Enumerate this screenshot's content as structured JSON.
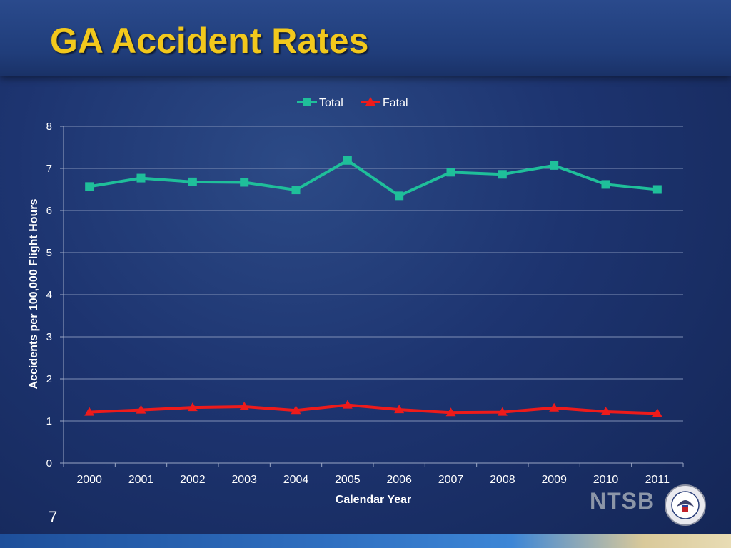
{
  "slide": {
    "title": "GA Accident Rates",
    "slide_number": "7",
    "logo_text": "NTSB",
    "colors": {
      "title": "#f2c81c",
      "background": "#1d3470"
    }
  },
  "chart_data": {
    "type": "line",
    "categories": [
      "2000",
      "2001",
      "2002",
      "2003",
      "2004",
      "2005",
      "2006",
      "2007",
      "2008",
      "2009",
      "2010",
      "2011"
    ],
    "series": [
      {
        "name": "Total",
        "color": "#1fbf9a",
        "marker": "square",
        "values": [
          6.57,
          6.77,
          6.68,
          6.67,
          6.49,
          7.19,
          6.35,
          6.91,
          6.86,
          7.07,
          6.62,
          6.5
        ]
      },
      {
        "name": "Fatal",
        "color": "#ee1b1b",
        "marker": "triangle",
        "values": [
          1.21,
          1.26,
          1.32,
          1.34,
          1.25,
          1.38,
          1.27,
          1.2,
          1.21,
          1.31,
          1.22,
          1.18
        ]
      }
    ],
    "xlabel": "Calendar Year",
    "ylabel": "Accidents per 100,000 Flight Hours",
    "ylim": [
      0,
      8
    ],
    "yticks": [
      "0",
      "1",
      "2",
      "3",
      "4",
      "5",
      "6",
      "7",
      "8"
    ],
    "grid": true,
    "legend": "top-center"
  }
}
